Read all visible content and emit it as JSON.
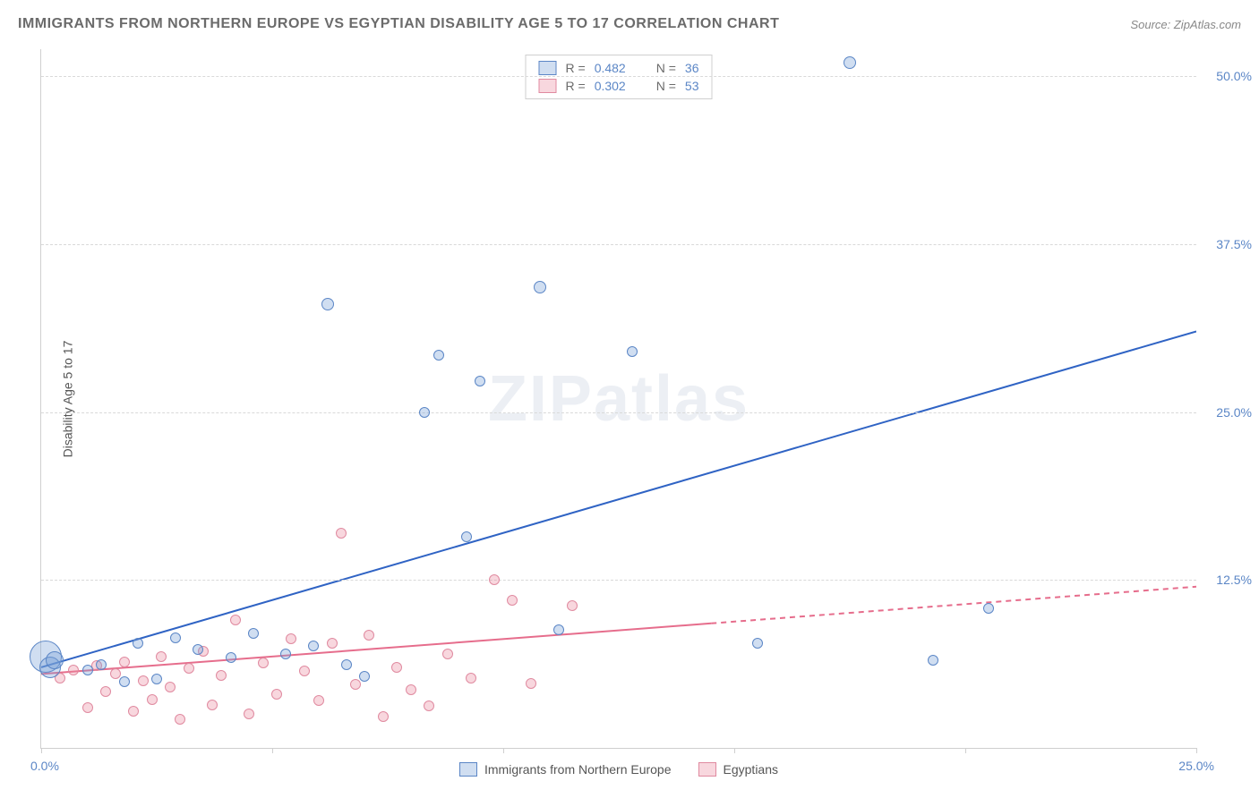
{
  "header": {
    "title": "IMMIGRANTS FROM NORTHERN EUROPE VS EGYPTIAN DISABILITY AGE 5 TO 17 CORRELATION CHART",
    "source": "Source: ZipAtlas.com"
  },
  "ylabel": "Disability Age 5 to 17",
  "watermark": "ZIPatlas",
  "chart": {
    "type": "scatter",
    "xlim": [
      0,
      25
    ],
    "ylim": [
      0,
      52
    ],
    "ytick_values": [
      12.5,
      25.0,
      37.5,
      50.0
    ],
    "ytick_labels": [
      "12.5%",
      "25.0%",
      "37.5%",
      "50.0%"
    ],
    "xtick_values": [
      0,
      5,
      10,
      15,
      20,
      25
    ],
    "x_origin_label": "0.0%",
    "x_max_label": "25.0%",
    "background_color": "#ffffff",
    "grid_color": "#d9d9d9",
    "series": {
      "blue": {
        "label": "Immigrants from Northern Europe",
        "fill": "rgba(120,160,215,0.35)",
        "stroke": "#5b86c6",
        "R": "0.482",
        "N": "36",
        "trend": {
          "x1": 0,
          "y1": 6,
          "x2": 25,
          "y2": 31,
          "solid_until_x": 25,
          "color": "#2f63c4",
          "width": 2
        },
        "points": [
          {
            "x": 0.1,
            "y": 6.8,
            "r": 18
          },
          {
            "x": 0.2,
            "y": 6.0,
            "r": 12
          },
          {
            "x": 0.3,
            "y": 6.5,
            "r": 10
          },
          {
            "x": 1.0,
            "y": 5.8,
            "r": 6
          },
          {
            "x": 1.3,
            "y": 6.2,
            "r": 6
          },
          {
            "x": 1.8,
            "y": 4.9,
            "r": 6
          },
          {
            "x": 2.1,
            "y": 7.8,
            "r": 6
          },
          {
            "x": 2.5,
            "y": 5.1,
            "r": 6
          },
          {
            "x": 2.9,
            "y": 8.2,
            "r": 6
          },
          {
            "x": 3.4,
            "y": 7.3,
            "r": 6
          },
          {
            "x": 4.1,
            "y": 6.7,
            "r": 6
          },
          {
            "x": 4.6,
            "y": 8.5,
            "r": 6
          },
          {
            "x": 5.3,
            "y": 7.0,
            "r": 6
          },
          {
            "x": 5.9,
            "y": 7.6,
            "r": 6
          },
          {
            "x": 6.2,
            "y": 33.0,
            "r": 7
          },
          {
            "x": 6.6,
            "y": 6.2,
            "r": 6
          },
          {
            "x": 7.0,
            "y": 5.3,
            "r": 6
          },
          {
            "x": 8.3,
            "y": 25.0,
            "r": 6
          },
          {
            "x": 8.6,
            "y": 29.2,
            "r": 6
          },
          {
            "x": 9.2,
            "y": 15.7,
            "r": 6
          },
          {
            "x": 9.5,
            "y": 27.3,
            "r": 6
          },
          {
            "x": 10.8,
            "y": 34.3,
            "r": 7
          },
          {
            "x": 11.2,
            "y": 8.8,
            "r": 6
          },
          {
            "x": 12.8,
            "y": 29.5,
            "r": 6
          },
          {
            "x": 15.5,
            "y": 7.8,
            "r": 6
          },
          {
            "x": 17.5,
            "y": 51.0,
            "r": 7
          },
          {
            "x": 19.3,
            "y": 6.5,
            "r": 6
          },
          {
            "x": 20.5,
            "y": 10.4,
            "r": 6
          }
        ]
      },
      "red": {
        "label": "Egyptians",
        "fill": "rgba(235,140,160,0.35)",
        "stroke": "#e08aa0",
        "R": "0.302",
        "N": "53",
        "trend": {
          "x1": 0,
          "y1": 5.5,
          "x2": 25,
          "y2": 12.0,
          "solid_until_x": 14.5,
          "color": "#e66d8c",
          "width": 2
        },
        "points": [
          {
            "x": 0.4,
            "y": 5.2,
            "r": 6
          },
          {
            "x": 0.7,
            "y": 5.8,
            "r": 6
          },
          {
            "x": 1.0,
            "y": 3.0,
            "r": 6
          },
          {
            "x": 1.2,
            "y": 6.1,
            "r": 6
          },
          {
            "x": 1.4,
            "y": 4.2,
            "r": 6
          },
          {
            "x": 1.6,
            "y": 5.5,
            "r": 6
          },
          {
            "x": 1.8,
            "y": 6.4,
            "r": 6
          },
          {
            "x": 2.0,
            "y": 2.7,
            "r": 6
          },
          {
            "x": 2.2,
            "y": 5.0,
            "r": 6
          },
          {
            "x": 2.4,
            "y": 3.6,
            "r": 6
          },
          {
            "x": 2.6,
            "y": 6.8,
            "r": 6
          },
          {
            "x": 2.8,
            "y": 4.5,
            "r": 6
          },
          {
            "x": 3.0,
            "y": 2.1,
            "r": 6
          },
          {
            "x": 3.2,
            "y": 5.9,
            "r": 6
          },
          {
            "x": 3.5,
            "y": 7.2,
            "r": 6
          },
          {
            "x": 3.7,
            "y": 3.2,
            "r": 6
          },
          {
            "x": 3.9,
            "y": 5.4,
            "r": 6
          },
          {
            "x": 4.2,
            "y": 9.5,
            "r": 6
          },
          {
            "x": 4.5,
            "y": 2.5,
            "r": 6
          },
          {
            "x": 4.8,
            "y": 6.3,
            "r": 6
          },
          {
            "x": 5.1,
            "y": 4.0,
            "r": 6
          },
          {
            "x": 5.4,
            "y": 8.1,
            "r": 6
          },
          {
            "x": 5.7,
            "y": 5.7,
            "r": 6
          },
          {
            "x": 6.0,
            "y": 3.5,
            "r": 6
          },
          {
            "x": 6.3,
            "y": 7.8,
            "r": 6
          },
          {
            "x": 6.5,
            "y": 16.0,
            "r": 6
          },
          {
            "x": 6.8,
            "y": 4.7,
            "r": 6
          },
          {
            "x": 7.1,
            "y": 8.4,
            "r": 6
          },
          {
            "x": 7.4,
            "y": 2.3,
            "r": 6
          },
          {
            "x": 7.7,
            "y": 6.0,
            "r": 6
          },
          {
            "x": 8.0,
            "y": 4.3,
            "r": 6
          },
          {
            "x": 8.4,
            "y": 3.1,
            "r": 6
          },
          {
            "x": 8.8,
            "y": 7.0,
            "r": 6
          },
          {
            "x": 9.3,
            "y": 5.2,
            "r": 6
          },
          {
            "x": 9.8,
            "y": 12.5,
            "r": 6
          },
          {
            "x": 10.2,
            "y": 11.0,
            "r": 6
          },
          {
            "x": 10.6,
            "y": 4.8,
            "r": 6
          },
          {
            "x": 11.5,
            "y": 10.6,
            "r": 6
          }
        ]
      }
    }
  },
  "legend_top": {
    "r_label": "R =",
    "n_label": "N ="
  }
}
